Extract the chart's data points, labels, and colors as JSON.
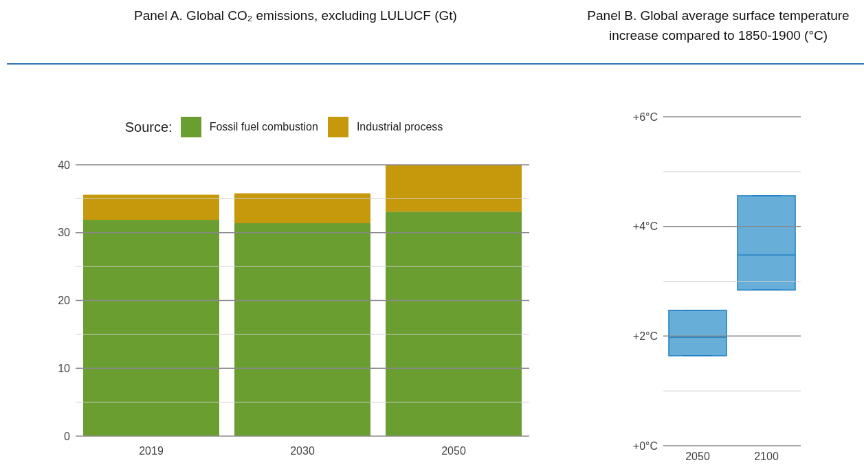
{
  "chart_data": [
    {
      "type": "bar",
      "title": "Panel A. Global CO₂ emissions, excluding LULUCF (Gt)",
      "legend_title": "Source:",
      "categories": [
        "2019",
        "2030",
        "2050"
      ],
      "stacked": true,
      "series": [
        {
          "name": "Fossil fuel combustion",
          "color": "#6b9e31",
          "values": [
            31.9,
            31.4,
            33.1
          ]
        },
        {
          "name": "Industrial process",
          "color": "#c6990c",
          "values": [
            3.7,
            4.4,
            6.9
          ]
        }
      ],
      "ylim": [
        0,
        40
      ],
      "yticks": [
        0,
        {
          "value": 5,
          "label": null
        },
        10,
        {
          "value": 15,
          "label": null
        },
        20,
        {
          "value": 25,
          "label": null
        },
        30,
        {
          "value": 35,
          "label": null
        },
        40
      ],
      "grid": "y",
      "legend": "top"
    },
    {
      "type": "box",
      "title": "Panel B. Global average surface temperature increase compared to 1850-1900 (°C)",
      "categories": [
        "2050",
        "2100"
      ],
      "color": "#67aed9",
      "boxes": [
        {
          "low": 1.64,
          "q1": 1.64,
          "median": 1.98,
          "q3": 2.47,
          "high": 2.47
        },
        {
          "low": 2.84,
          "q1": 2.84,
          "median": 3.48,
          "q3": 4.56,
          "high": 4.56
        }
      ],
      "ylim": [
        0,
        6
      ],
      "yticks": [
        {
          "value": 0,
          "label": "+0°C"
        },
        {
          "value": 1,
          "label": null
        },
        {
          "value": 2,
          "label": "+2°C"
        },
        {
          "value": 3,
          "label": null
        },
        {
          "value": 4,
          "label": "+4°C"
        },
        {
          "value": 5,
          "label": null
        },
        {
          "value": 6,
          "label": "+6°C"
        }
      ],
      "grid": "y"
    }
  ]
}
